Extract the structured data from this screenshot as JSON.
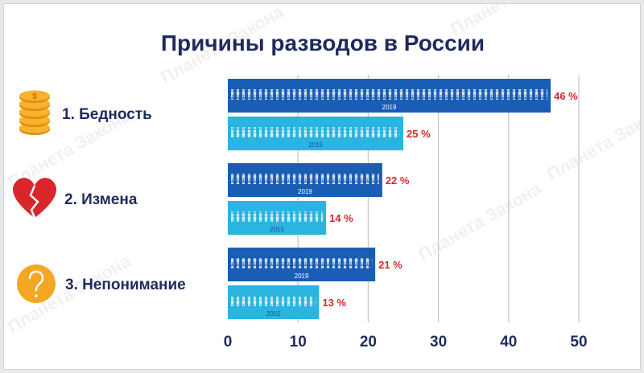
{
  "chart_data": {
    "type": "bar",
    "orientation": "horizontal",
    "title": "Причины разводов в России",
    "categories": [
      "1. Бедность",
      "2. Измена",
      "3. Непонимание"
    ],
    "category_icons": [
      "coins-icon",
      "broken-heart-icon",
      "question-icon"
    ],
    "series": [
      {
        "name": "2019",
        "values": [
          46,
          22,
          21
        ],
        "color": "#1a5db5"
      },
      {
        "name": "2015",
        "values": [
          25,
          14,
          13
        ],
        "color": "#2ab4e0"
      }
    ],
    "value_suffix": " %",
    "xlim": [
      0,
      50
    ],
    "xticks": [
      "0",
      "10",
      "20",
      "30",
      "40",
      "50"
    ],
    "grid": true,
    "watermark": "Планета Закона"
  }
}
